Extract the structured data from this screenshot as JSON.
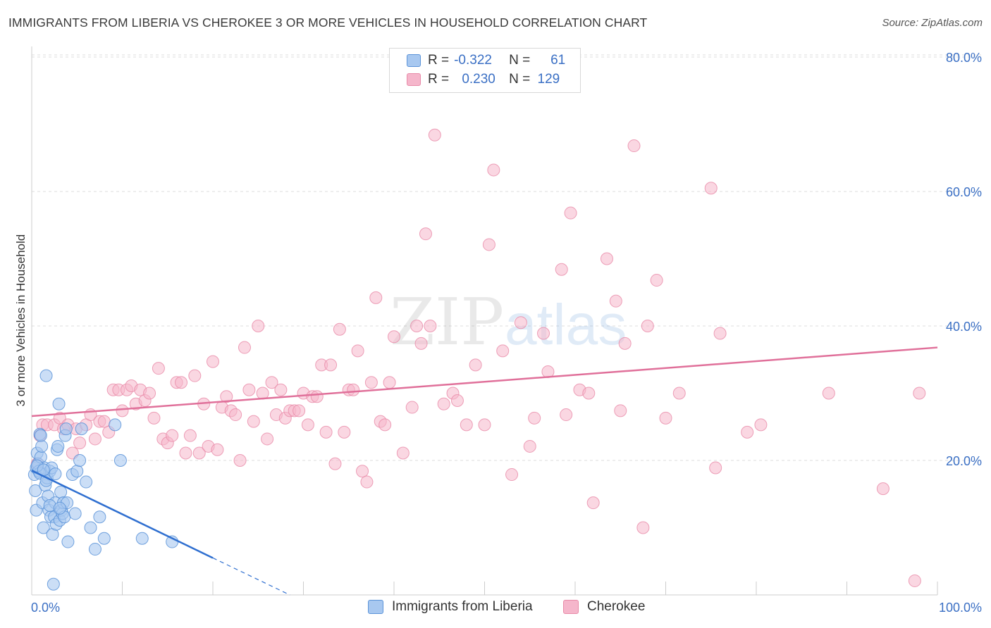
{
  "title": "IMMIGRANTS FROM LIBERIA VS CHEROKEE 3 OR MORE VEHICLES IN HOUSEHOLD CORRELATION CHART",
  "source": "Source: ZipAtlas.com",
  "watermark": {
    "zip": "ZIP",
    "atlas": "atlas"
  },
  "legend": {
    "rows": [
      {
        "r_label": "R =",
        "r_value": "-0.322",
        "n_label": "N =",
        "n_value": "61",
        "color": "#a8c8f0"
      },
      {
        "r_label": "R =",
        "r_value": "0.230",
        "n_label": "N =",
        "n_value": "129",
        "color": "#f5b6cb"
      }
    ]
  },
  "colors": {
    "liberia_fill": "#a8c8f0",
    "liberia_stroke": "#5b93d8",
    "liberia_line": "#2f6fd0",
    "cherokee_fill": "#f5b6cb",
    "cherokee_stroke": "#e88aa8",
    "cherokee_line": "#e0709a",
    "axis_text": "#3a6fc4",
    "grid": "#dddddd"
  },
  "chart_data": {
    "type": "scatter",
    "title": "IMMIGRANTS FROM LIBERIA VS CHEROKEE 3 OR MORE VEHICLES IN HOUSEHOLD CORRELATION CHART",
    "xlabel": "",
    "ylabel": "3 or more Vehicles in Household",
    "xlim": [
      0,
      100
    ],
    "ylim": [
      0,
      80
    ],
    "x_tick_labels": [
      "0.0%",
      "100.0%"
    ],
    "y_ticks": [
      20,
      40,
      60,
      80
    ],
    "y_tick_labels": [
      "20.0%",
      "40.0%",
      "60.0%",
      "80.0%"
    ],
    "grid": true,
    "legend_position": "bottom",
    "series": [
      {
        "name": "Immigrants from Liberia",
        "points": [
          [
            0.3,
            17.9
          ],
          [
            0.4,
            15.5
          ],
          [
            0.5,
            18.9
          ],
          [
            0.5,
            12.6
          ],
          [
            0.6,
            21.1
          ],
          [
            0.7,
            19.5
          ],
          [
            0.8,
            18.4
          ],
          [
            0.9,
            23.9
          ],
          [
            1.0,
            20.5
          ],
          [
            1.1,
            22.1
          ],
          [
            1.2,
            13.7
          ],
          [
            1.3,
            10.0
          ],
          [
            1.4,
            18.9
          ],
          [
            1.5,
            16.3
          ],
          [
            1.6,
            32.6
          ],
          [
            1.7,
            17.4
          ],
          [
            1.8,
            14.7
          ],
          [
            1.9,
            12.6
          ],
          [
            2.0,
            18.4
          ],
          [
            2.1,
            11.6
          ],
          [
            2.2,
            18.9
          ],
          [
            2.3,
            9.0
          ],
          [
            2.4,
            1.6
          ],
          [
            2.5,
            11.6
          ],
          [
            2.6,
            13.7
          ],
          [
            2.7,
            10.5
          ],
          [
            2.8,
            21.6
          ],
          [
            2.9,
            22.1
          ],
          [
            3.0,
            28.4
          ],
          [
            3.1,
            11.1
          ],
          [
            3.2,
            15.3
          ],
          [
            3.3,
            12.6
          ],
          [
            3.4,
            12.1
          ],
          [
            3.5,
            13.7
          ],
          [
            3.6,
            11.6
          ],
          [
            3.7,
            23.7
          ],
          [
            3.8,
            24.7
          ],
          [
            3.9,
            13.7
          ],
          [
            4.0,
            7.9
          ],
          [
            4.5,
            17.9
          ],
          [
            4.8,
            12.1
          ],
          [
            5.0,
            18.4
          ],
          [
            5.3,
            20.0
          ],
          [
            5.5,
            24.7
          ],
          [
            6.0,
            16.8
          ],
          [
            6.5,
            10.0
          ],
          [
            7.0,
            6.8
          ],
          [
            7.5,
            11.6
          ],
          [
            8.0,
            8.4
          ],
          [
            9.2,
            25.3
          ],
          [
            9.8,
            20.0
          ],
          [
            12.2,
            8.4
          ],
          [
            15.5,
            7.9
          ],
          [
            0.9,
            18.1
          ],
          [
            1.6,
            17.0
          ],
          [
            2.0,
            13.3
          ],
          [
            1.0,
            23.7
          ],
          [
            2.6,
            18.0
          ],
          [
            3.1,
            12.9
          ],
          [
            0.6,
            19.2
          ],
          [
            1.3,
            18.6
          ]
        ]
      },
      {
        "name": "Cherokee",
        "points": [
          [
            0.6,
            19.5
          ],
          [
            0.9,
            23.7
          ],
          [
            1.2,
            25.3
          ],
          [
            1.7,
            25.3
          ],
          [
            2.5,
            25.3
          ],
          [
            3.1,
            26.3
          ],
          [
            3.5,
            24.7
          ],
          [
            4.0,
            25.3
          ],
          [
            4.5,
            21.1
          ],
          [
            4.9,
            24.7
          ],
          [
            5.3,
            22.6
          ],
          [
            6.0,
            25.3
          ],
          [
            6.5,
            26.8
          ],
          [
            7.0,
            23.2
          ],
          [
            7.5,
            25.8
          ],
          [
            8.0,
            25.8
          ],
          [
            8.5,
            24.2
          ],
          [
            9.0,
            30.5
          ],
          [
            9.6,
            30.5
          ],
          [
            10.0,
            27.4
          ],
          [
            10.5,
            30.5
          ],
          [
            11.0,
            31.1
          ],
          [
            11.5,
            28.4
          ],
          [
            12.0,
            30.5
          ],
          [
            12.5,
            28.9
          ],
          [
            13.0,
            30.0
          ],
          [
            13.5,
            26.3
          ],
          [
            14.0,
            33.7
          ],
          [
            14.5,
            23.2
          ],
          [
            15.0,
            22.6
          ],
          [
            15.5,
            23.7
          ],
          [
            16.0,
            31.6
          ],
          [
            16.5,
            31.6
          ],
          [
            17.0,
            21.1
          ],
          [
            17.5,
            23.7
          ],
          [
            18.0,
            32.6
          ],
          [
            18.5,
            21.1
          ],
          [
            19.0,
            28.4
          ],
          [
            19.5,
            22.1
          ],
          [
            20.0,
            34.7
          ],
          [
            20.5,
            21.6
          ],
          [
            21.0,
            27.9
          ],
          [
            21.5,
            29.5
          ],
          [
            22.0,
            27.4
          ],
          [
            22.5,
            26.8
          ],
          [
            23.0,
            20.0
          ],
          [
            23.5,
            36.8
          ],
          [
            24.0,
            30.5
          ],
          [
            24.5,
            25.8
          ],
          [
            25.0,
            40.0
          ],
          [
            25.5,
            30.0
          ],
          [
            26.0,
            23.2
          ],
          [
            26.5,
            31.6
          ],
          [
            27.0,
            26.8
          ],
          [
            27.5,
            30.5
          ],
          [
            28.0,
            26.3
          ],
          [
            28.5,
            27.4
          ],
          [
            29.0,
            27.4
          ],
          [
            29.5,
            27.4
          ],
          [
            30.0,
            30.0
          ],
          [
            30.5,
            25.3
          ],
          [
            31.0,
            29.5
          ],
          [
            31.5,
            29.5
          ],
          [
            32.0,
            34.2
          ],
          [
            32.5,
            24.2
          ],
          [
            33.0,
            34.2
          ],
          [
            33.5,
            19.5
          ],
          [
            34.0,
            39.5
          ],
          [
            34.5,
            24.2
          ],
          [
            35.0,
            30.5
          ],
          [
            35.5,
            30.5
          ],
          [
            36.0,
            36.3
          ],
          [
            36.5,
            18.4
          ],
          [
            37.0,
            16.8
          ],
          [
            37.5,
            31.6
          ],
          [
            38.0,
            44.2
          ],
          [
            38.5,
            25.8
          ],
          [
            39.0,
            25.3
          ],
          [
            39.5,
            31.6
          ],
          [
            40.0,
            38.4
          ],
          [
            41.0,
            21.1
          ],
          [
            42.0,
            27.9
          ],
          [
            42.5,
            40.0
          ],
          [
            43.0,
            37.4
          ],
          [
            43.5,
            53.7
          ],
          [
            44.0,
            40.0
          ],
          [
            44.5,
            68.4
          ],
          [
            45.5,
            28.4
          ],
          [
            46.5,
            30.0
          ],
          [
            47.0,
            28.9
          ],
          [
            48.0,
            25.3
          ],
          [
            49.0,
            34.2
          ],
          [
            50.0,
            25.3
          ],
          [
            50.5,
            52.1
          ],
          [
            51.0,
            63.2
          ],
          [
            52.0,
            36.3
          ],
          [
            53.0,
            17.9
          ],
          [
            54.0,
            40.5
          ],
          [
            55.0,
            22.1
          ],
          [
            55.5,
            26.3
          ],
          [
            56.5,
            38.9
          ],
          [
            57.0,
            33.2
          ],
          [
            58.5,
            48.4
          ],
          [
            59.0,
            26.8
          ],
          [
            59.5,
            56.8
          ],
          [
            60.5,
            30.5
          ],
          [
            61.5,
            30.0
          ],
          [
            62.0,
            13.7
          ],
          [
            63.5,
            50.0
          ],
          [
            64.5,
            43.7
          ],
          [
            65.0,
            27.4
          ],
          [
            65.5,
            37.4
          ],
          [
            66.5,
            66.8
          ],
          [
            67.5,
            10.0
          ],
          [
            68.0,
            40.0
          ],
          [
            69.0,
            46.8
          ],
          [
            70.0,
            26.3
          ],
          [
            71.5,
            30.0
          ],
          [
            75.0,
            60.5
          ],
          [
            75.5,
            18.9
          ],
          [
            76.0,
            38.9
          ],
          [
            79.0,
            24.2
          ],
          [
            80.5,
            25.3
          ],
          [
            88.0,
            30.0
          ],
          [
            94.0,
            15.8
          ],
          [
            97.5,
            2.1
          ],
          [
            98.0,
            30.0
          ]
        ]
      }
    ],
    "trendlines": [
      {
        "series": "Immigrants from Liberia",
        "x": [
          0,
          20
        ],
        "y": [
          18.5,
          5.5
        ],
        "dashed_extension_x": [
          20,
          28.5
        ],
        "dashed_extension_y": [
          5.5,
          0
        ]
      },
      {
        "series": "Cherokee",
        "x": [
          0,
          100
        ],
        "y": [
          26.6,
          36.8
        ]
      }
    ]
  },
  "bottom_legend": [
    {
      "label": "Immigrants from Liberia"
    },
    {
      "label": "Cherokee"
    }
  ]
}
